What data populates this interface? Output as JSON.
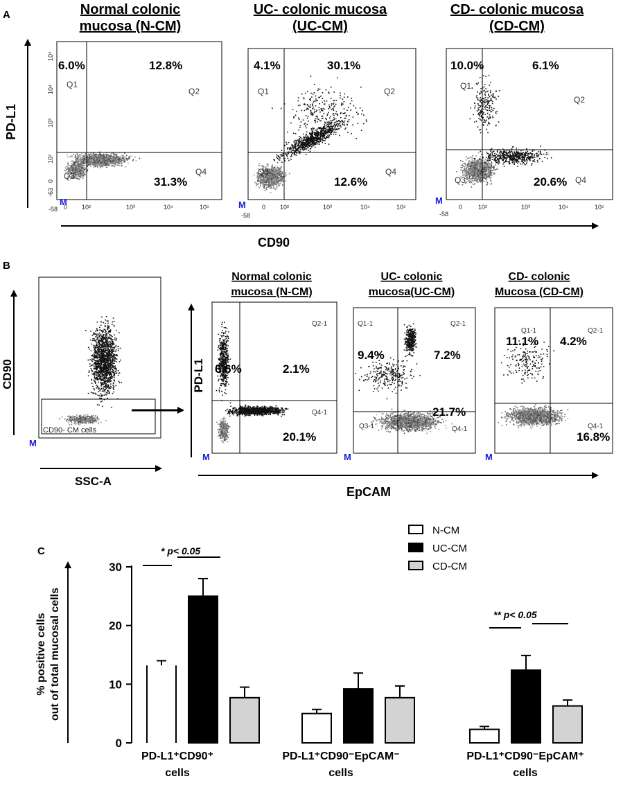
{
  "chart_data": [
    {
      "type": "scatter",
      "panel": "A",
      "xlabel": "CD90",
      "ylabel": "PD-L1",
      "x_ticks": [
        "-58",
        "0",
        "10²",
        "10³",
        "10⁴",
        "10⁵"
      ],
      "y_ticks": [
        "-63",
        "0",
        "10²",
        "10³",
        "10⁴",
        "10⁵"
      ],
      "plots": [
        {
          "title_l1": "Normal colonic",
          "title_l2": "mucosa (N-CM)",
          "q1": "6.0%",
          "q2": "12.8%",
          "q4": "31.3%"
        },
        {
          "title_l1": "UC- colonic mucosa",
          "title_l2": "(UC-CM)",
          "q1": "4.1%",
          "q2": "30.1%",
          "q4": "12.6%"
        },
        {
          "title_l1": "CD- colonic mucosa",
          "title_l2": "(CD-CM)",
          "q1": "10.0%",
          "q2": "6.1%",
          "q4": "20.6%"
        }
      ],
      "quadrant_labels": [
        "Q1",
        "Q2",
        "Q3",
        "Q4"
      ],
      "gate_marker": "M"
    },
    {
      "type": "scatter",
      "panel": "B",
      "gate_plot": {
        "xlabel": "SSC-A",
        "ylabel": "CD90",
        "gate_label": "CD90- CM cells"
      },
      "xlabel": "EpCAM",
      "ylabel": "PD-L1",
      "plots": [
        {
          "title_l1": "Normal colonic",
          "title_l2": "mucosa (N-CM)",
          "q1": "6.6%",
          "q2": "2.1%",
          "q4": "20.1%"
        },
        {
          "title_l1": "UC- colonic",
          "title_l2": "mucosa(UC-CM)",
          "q1": "9.4%",
          "q2": "7.2%",
          "q4": "21.7%"
        },
        {
          "title_l1": "CD- colonic",
          "title_l2": "Mucosa (CD-CM)",
          "q1": "11.1%",
          "q2": "4.2%",
          "q4": "16.8%"
        }
      ],
      "quadrant_labels": [
        "Q1-1",
        "Q2-1",
        "Q3-1",
        "Q4-1"
      ]
    },
    {
      "type": "bar",
      "panel": "C",
      "ylabel_l1": "% positive cells",
      "ylabel_l2": "out of total mucosal cells",
      "ylim": [
        0,
        30
      ],
      "yticks": [
        0,
        10,
        20,
        30
      ],
      "categories": [
        {
          "l1": "PD-L1⁺CD90⁺",
          "l2": "cells"
        },
        {
          "l1": "PD-L1⁺CD90⁻EpCAM⁻",
          "l2": "cells"
        },
        {
          "l1": "PD-L1⁺CD90⁻EpCAM⁺",
          "l2": "cells"
        }
      ],
      "series": [
        {
          "name": "N-CM",
          "color": "#ffffff",
          "values": [
            13.2,
            5.0,
            2.3
          ],
          "errors": [
            0.8,
            0.7,
            0.5
          ]
        },
        {
          "name": "UC-CM",
          "color": "#000000",
          "values": [
            25.0,
            9.2,
            12.4
          ],
          "errors": [
            3.0,
            2.7,
            2.5
          ]
        },
        {
          "name": "CD-CM",
          "color": "#d3d3d3",
          "values": [
            7.7,
            7.7,
            6.3
          ],
          "errors": [
            1.8,
            2.0,
            1.0
          ]
        }
      ],
      "annotations": [
        {
          "text": "* p< 0.05"
        },
        {
          "text": "** p< 0.05"
        }
      ]
    }
  ]
}
